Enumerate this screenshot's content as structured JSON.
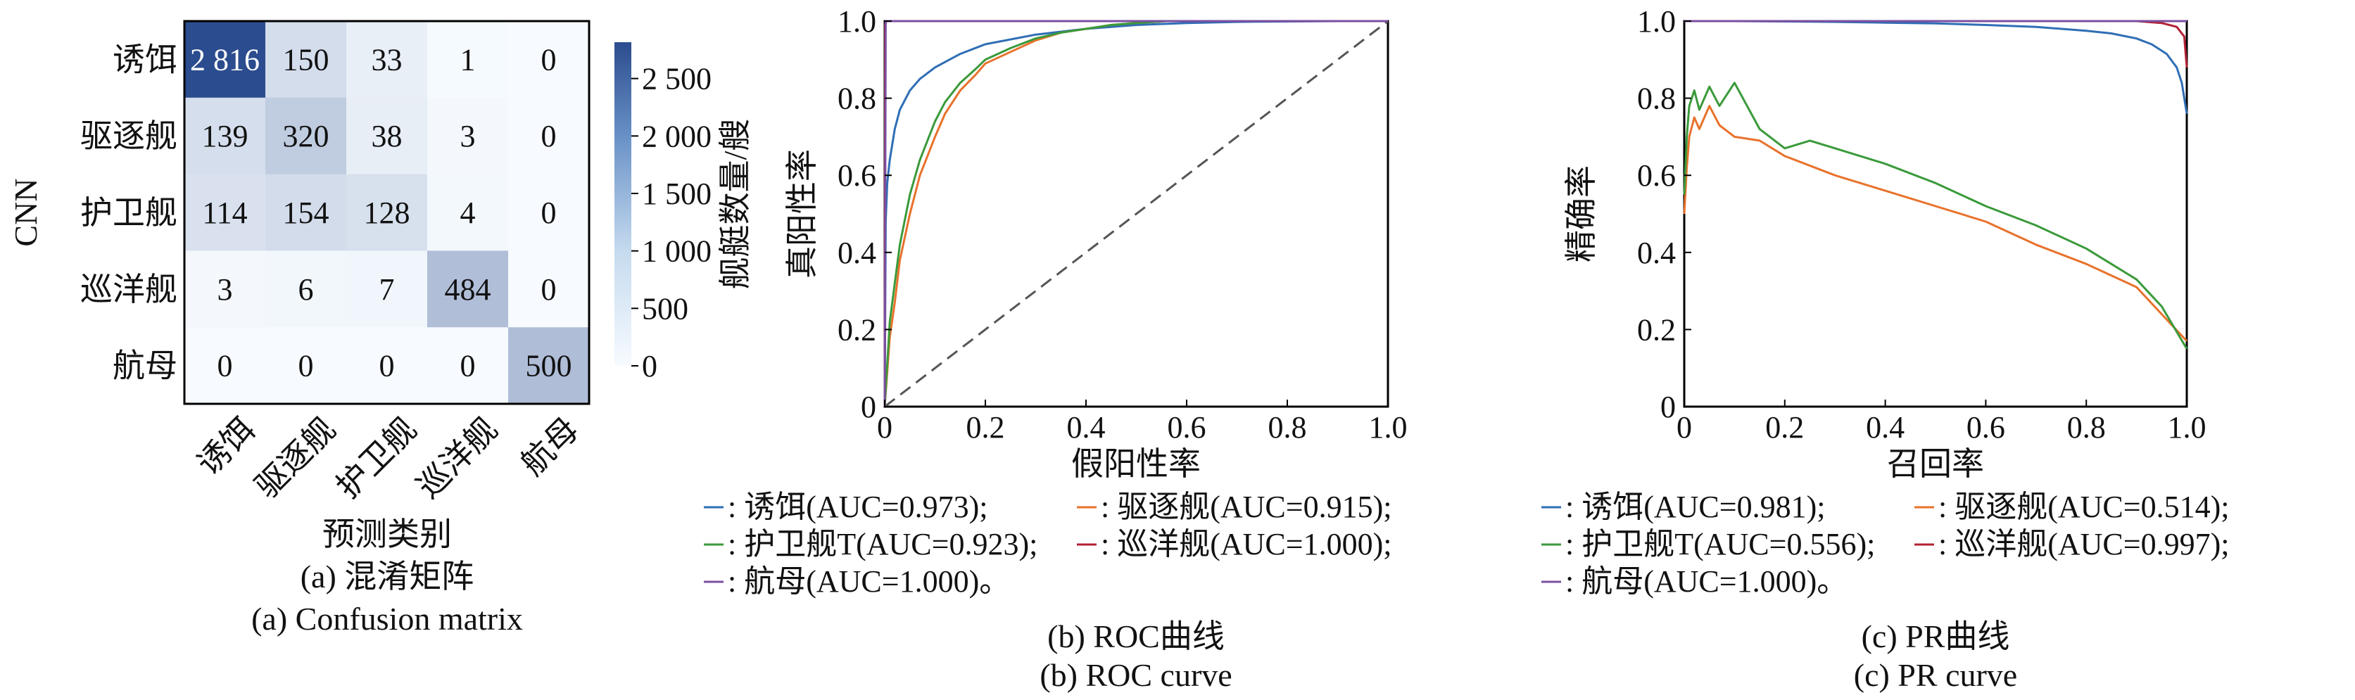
{
  "chart_data": [
    {
      "type": "heatmap",
      "ylabel": "CNN",
      "xlabel": "预测类别",
      "caption_cn": "(a) 混淆矩阵",
      "caption_en": "(a) Confusion matrix",
      "row_labels": [
        "诱饵",
        "驱逐舰",
        "护卫舰",
        "巡洋舰",
        "航母"
      ],
      "col_labels": [
        "诱饵",
        "驱逐舰",
        "护卫舰",
        "巡洋舰",
        "航母"
      ],
      "matrix": [
        [
          2816,
          150,
          33,
          1,
          0
        ],
        [
          139,
          320,
          38,
          3,
          0
        ],
        [
          114,
          154,
          128,
          4,
          0
        ],
        [
          3,
          6,
          7,
          484,
          0
        ],
        [
          0,
          0,
          0,
          0,
          500
        ]
      ],
      "cell_labels": [
        [
          "2 816",
          "150",
          "33",
          "1",
          "0"
        ],
        [
          "139",
          "320",
          "38",
          "3",
          "0"
        ],
        [
          "114",
          "154",
          "128",
          "4",
          "0"
        ],
        [
          "3",
          "6",
          "7",
          "484",
          "0"
        ],
        [
          "0",
          "0",
          "0",
          "0",
          "500"
        ]
      ],
      "colorbar": {
        "label": "舰艇数量/艘",
        "range": [
          0,
          2816
        ],
        "ticks": [
          0,
          500,
          1000,
          1500,
          2000,
          2500
        ],
        "tick_labels": [
          "0",
          "500",
          "1 000",
          "1 500",
          "2 000",
          "2 500"
        ],
        "colors": [
          "#f7fbff",
          "#2b4c8e"
        ]
      }
    },
    {
      "type": "line",
      "xlabel": "假阳性率",
      "ylabel": "真阳性率",
      "xlim": [
        0,
        1
      ],
      "ylim": [
        0,
        1
      ],
      "xticks": [
        "0",
        "0.2",
        "0.4",
        "0.6",
        "0.8",
        "1.0"
      ],
      "yticks": [
        "0",
        "0.2",
        "0.4",
        "0.6",
        "0.8",
        "1.0"
      ],
      "caption_cn": "(b) ROC曲线",
      "caption_en": "(b) ROC curve",
      "legend": [
        ": 诱饵(AUC=0.973);",
        ": 驱逐舰(AUC=0.915);",
        ": 护卫舰T(AUC=0.923);",
        ": 巡洋舰(AUC=1.000);",
        ": 航母(AUC=1.000)。"
      ],
      "diagonal": {
        "x": [
          0,
          1
        ],
        "y": [
          0,
          1
        ],
        "color": "#555555"
      },
      "series": [
        {
          "color": "#2f6eb5",
          "x": [
            0,
            0.002,
            0.005,
            0.01,
            0.02,
            0.03,
            0.05,
            0.07,
            0.1,
            0.15,
            0.2,
            0.3,
            0.4,
            0.5,
            0.6,
            0.7,
            0.8,
            0.9,
            1.0
          ],
          "y": [
            0,
            0.48,
            0.58,
            0.64,
            0.72,
            0.77,
            0.82,
            0.85,
            0.88,
            0.915,
            0.94,
            0.965,
            0.98,
            0.99,
            0.995,
            0.998,
            0.999,
            1.0,
            1.0
          ]
        },
        {
          "color": "#e8722c",
          "x": [
            0,
            0.01,
            0.02,
            0.03,
            0.05,
            0.07,
            0.1,
            0.12,
            0.15,
            0.18,
            0.2,
            0.25,
            0.3,
            0.35,
            0.4,
            0.45,
            0.5,
            0.56,
            0.7,
            1.0
          ],
          "y": [
            0,
            0.18,
            0.27,
            0.38,
            0.5,
            0.6,
            0.7,
            0.76,
            0.82,
            0.86,
            0.89,
            0.92,
            0.95,
            0.97,
            0.98,
            0.99,
            0.995,
            1.0,
            1.0,
            1.0
          ]
        },
        {
          "color": "#3a9a3a",
          "x": [
            0,
            0.01,
            0.02,
            0.03,
            0.05,
            0.07,
            0.1,
            0.12,
            0.15,
            0.18,
            0.2,
            0.25,
            0.3,
            0.35,
            0.4,
            0.45,
            0.5,
            0.56,
            0.7,
            1.0
          ],
          "y": [
            0,
            0.22,
            0.32,
            0.42,
            0.55,
            0.64,
            0.74,
            0.79,
            0.84,
            0.875,
            0.9,
            0.93,
            0.955,
            0.97,
            0.98,
            0.99,
            0.995,
            1.0,
            1.0,
            1.0
          ]
        },
        {
          "color": "#b22234",
          "x": [
            0,
            0.001,
            0.003,
            1.0
          ],
          "y": [
            0,
            0.99,
            1.0,
            1.0
          ]
        },
        {
          "color": "#7b4fa0",
          "x": [
            0,
            0.002,
            1.0
          ],
          "y": [
            0,
            1.0,
            1.0
          ]
        }
      ]
    },
    {
      "type": "line",
      "xlabel": "召回率",
      "ylabel": "精确率",
      "xlim": [
        0,
        1
      ],
      "ylim": [
        0,
        1
      ],
      "xticks": [
        "0",
        "0.2",
        "0.4",
        "0.6",
        "0.8",
        "1.0"
      ],
      "yticks": [
        "0",
        "0.2",
        "0.4",
        "0.6",
        "0.8",
        "1.0"
      ],
      "caption_cn": "(c) PR曲线",
      "caption_en": "(c) PR curve",
      "legend": [
        ": 诱饵(AUC=0.981);",
        ": 驱逐舰(AUC=0.514);",
        ": 护卫舰T(AUC=0.556);",
        ": 巡洋舰(AUC=0.997);",
        ": 航母(AUC=1.000)。"
      ],
      "series": [
        {
          "color": "#2f6eb5",
          "x": [
            0,
            0.1,
            0.2,
            0.3,
            0.4,
            0.5,
            0.6,
            0.7,
            0.8,
            0.85,
            0.9,
            0.93,
            0.96,
            0.98,
            0.99,
            1.0
          ],
          "y": [
            1.0,
            1.0,
            0.999,
            0.998,
            0.996,
            0.994,
            0.99,
            0.985,
            0.975,
            0.968,
            0.955,
            0.94,
            0.915,
            0.88,
            0.84,
            0.76
          ]
        },
        {
          "color": "#e8722c",
          "x": [
            0,
            0.005,
            0.01,
            0.02,
            0.03,
            0.05,
            0.07,
            0.1,
            0.15,
            0.2,
            0.3,
            0.4,
            0.5,
            0.6,
            0.7,
            0.8,
            0.9,
            0.95,
            1.0
          ],
          "y": [
            0.5,
            0.62,
            0.7,
            0.75,
            0.72,
            0.78,
            0.73,
            0.7,
            0.69,
            0.65,
            0.6,
            0.56,
            0.52,
            0.48,
            0.42,
            0.37,
            0.31,
            0.24,
            0.17
          ]
        },
        {
          "color": "#3a9a3a",
          "x": [
            0,
            0.005,
            0.01,
            0.02,
            0.03,
            0.05,
            0.07,
            0.1,
            0.15,
            0.2,
            0.25,
            0.3,
            0.4,
            0.5,
            0.6,
            0.7,
            0.8,
            0.9,
            0.95,
            1.0
          ],
          "y": [
            0.55,
            0.7,
            0.78,
            0.82,
            0.77,
            0.83,
            0.78,
            0.84,
            0.72,
            0.67,
            0.69,
            0.67,
            0.63,
            0.58,
            0.52,
            0.47,
            0.41,
            0.33,
            0.26,
            0.15
          ]
        },
        {
          "color": "#b22234",
          "x": [
            0,
            0.5,
            0.9,
            0.95,
            0.98,
            0.995,
            1.0
          ],
          "y": [
            1.0,
            1.0,
            1.0,
            0.995,
            0.985,
            0.96,
            0.88
          ]
        },
        {
          "color": "#7b4fa0",
          "x": [
            0,
            0.5,
            1.0
          ],
          "y": [
            1.0,
            1.0,
            1.0
          ]
        }
      ]
    }
  ]
}
